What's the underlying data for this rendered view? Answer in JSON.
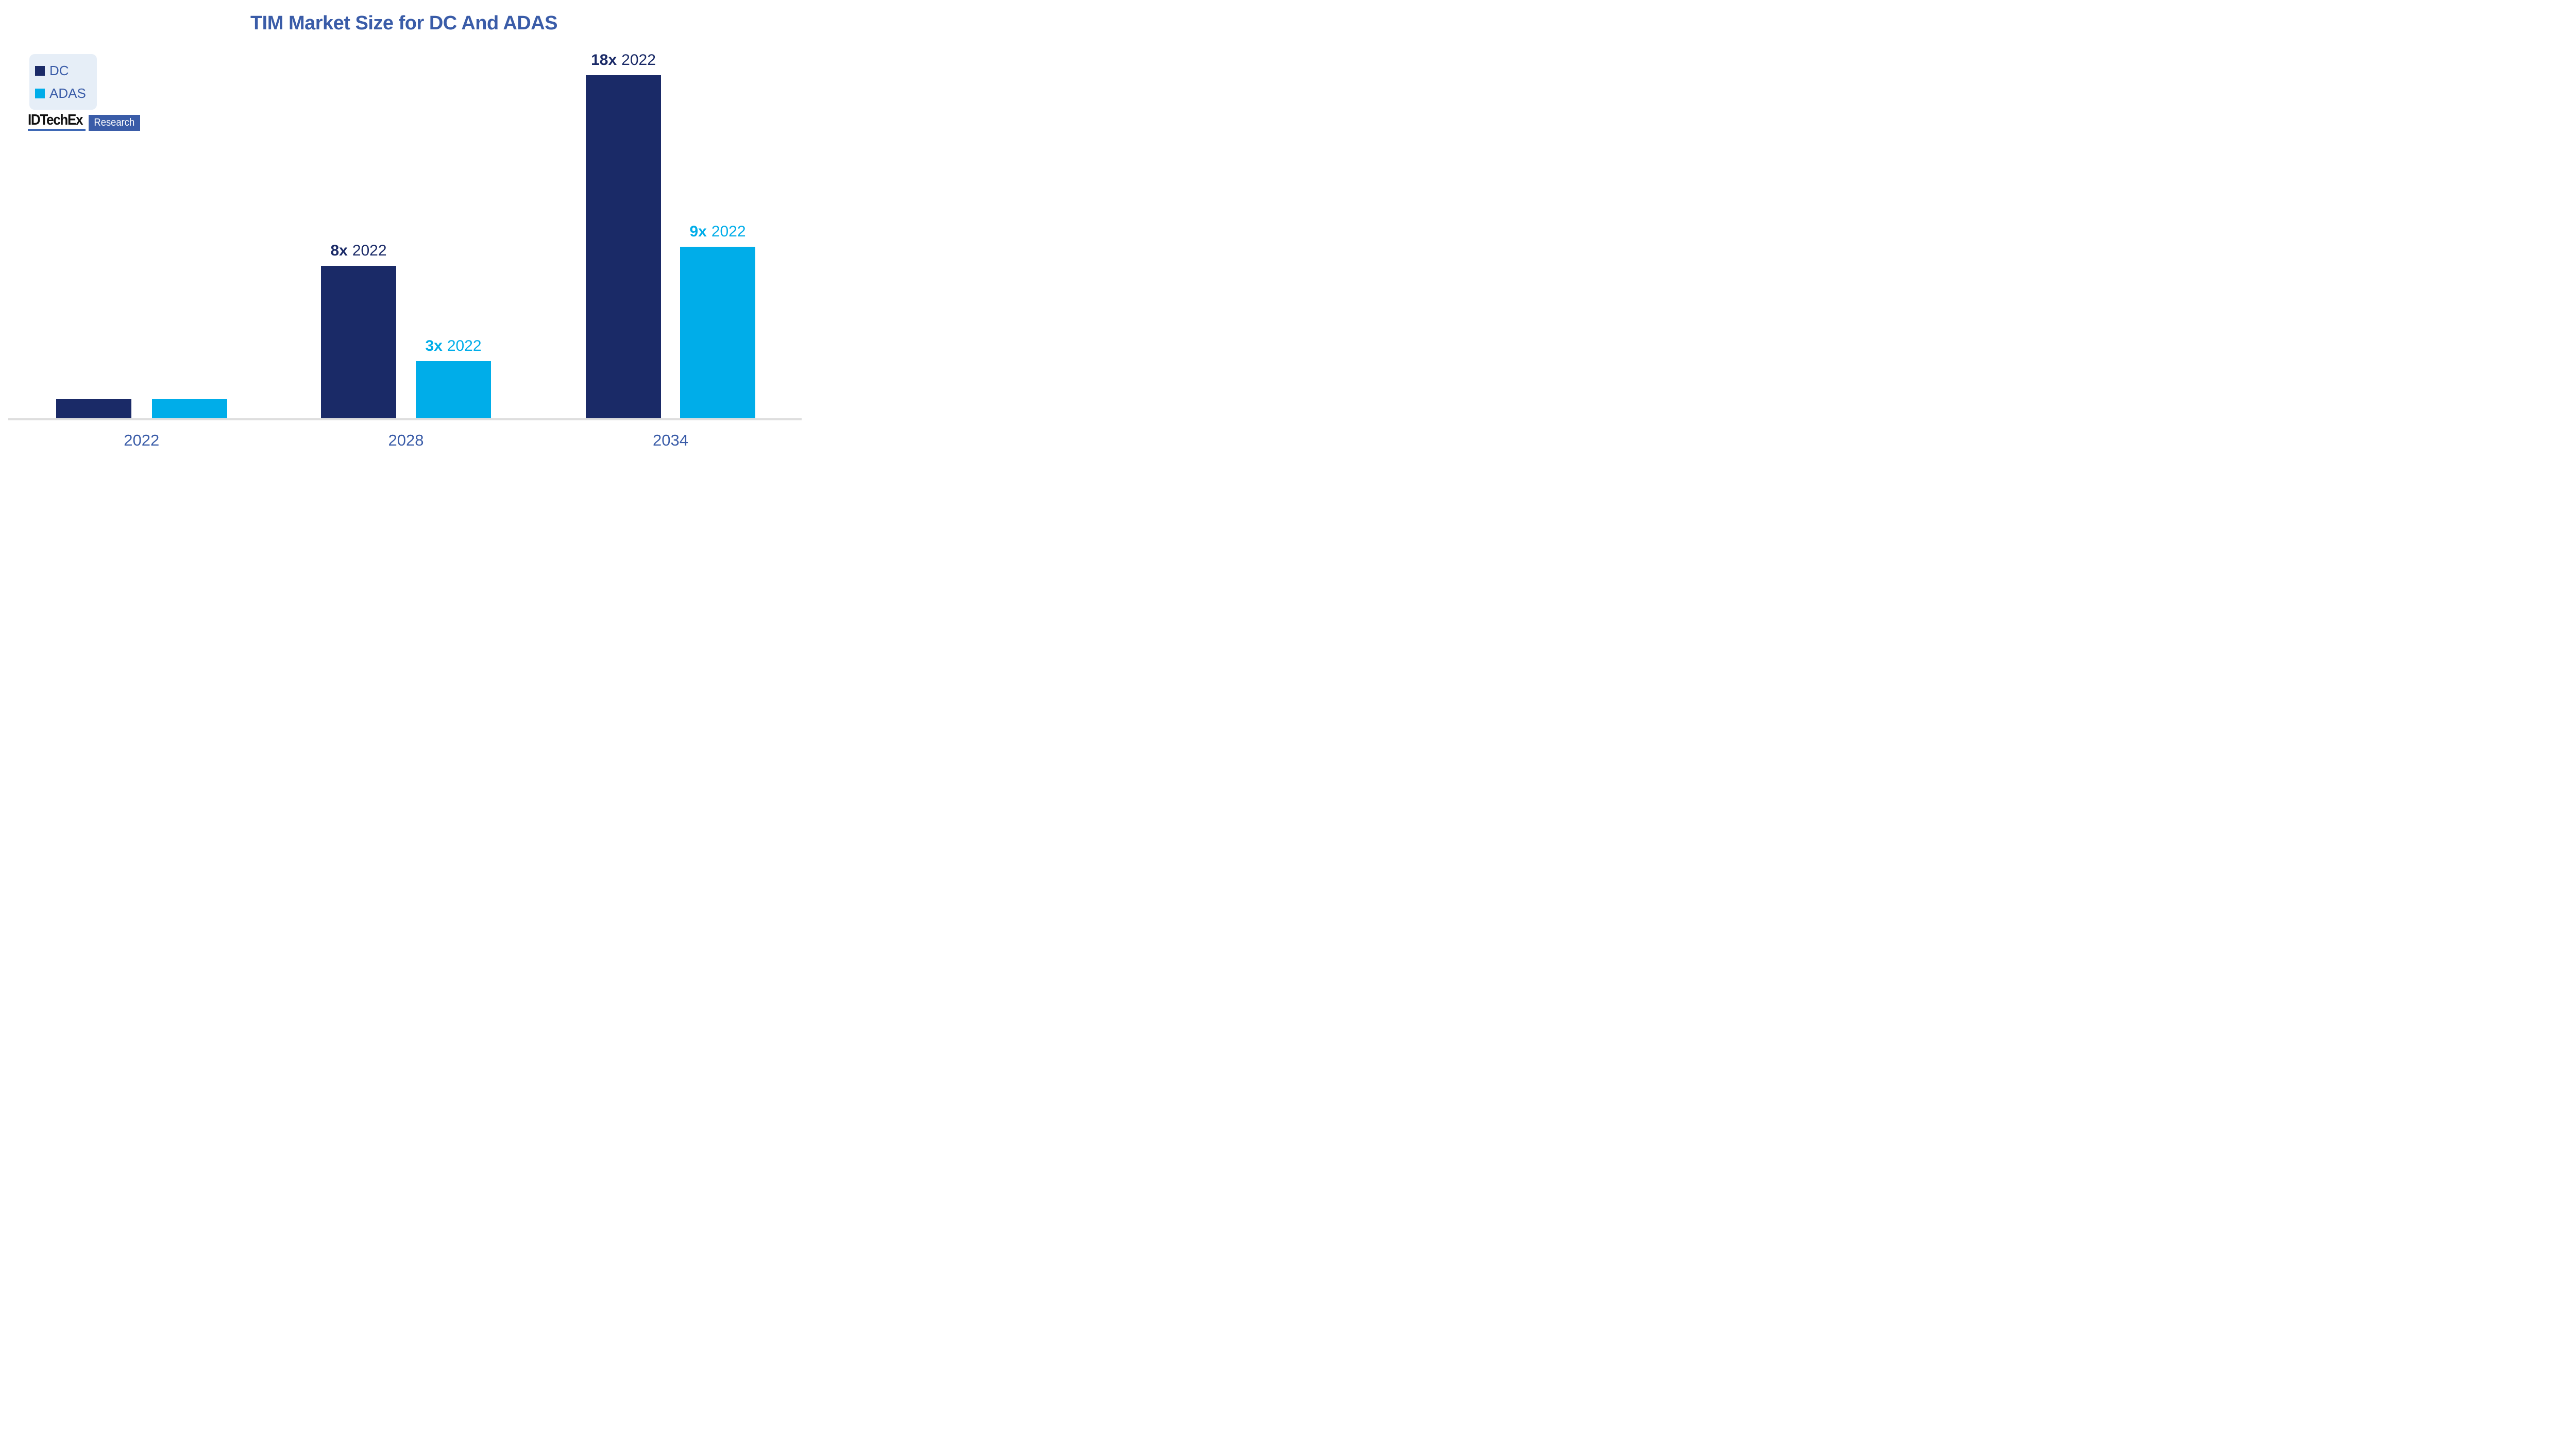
{
  "page": {
    "background": "#FFFFFF"
  },
  "title": {
    "text": "TIM Market Size for DC And ADAS"
  },
  "legend": {
    "background": "#E6EEF7",
    "items": [
      {
        "label": "DC",
        "color": "#1A2A67"
      },
      {
        "label": "ADAS",
        "color": "#00ADE9"
      }
    ]
  },
  "logo": {
    "brand": "IDTechEx",
    "suffix": "Research",
    "brand_color": "#101010",
    "underline_color": "#3E68B5",
    "box_color": "#3A5CA8",
    "suffix_text_color": "#FFFFFF"
  },
  "colors": {
    "dc": "#1A2A67",
    "adas": "#00ADE9",
    "text_blue": "#3A5CA8",
    "baseline": "#DEDEDE"
  },
  "chart_data": {
    "type": "bar",
    "title": "TIM Market Size for DC And ADAS",
    "categories": [
      "2022",
      "2028",
      "2034"
    ],
    "series": [
      {
        "name": "DC",
        "color": "#1A2A67",
        "values": [
          1,
          8,
          18
        ],
        "labels": [
          {
            "mult": "",
            "year": ""
          },
          {
            "mult": "8x",
            "year": "2022"
          },
          {
            "mult": "18x",
            "year": "2022"
          }
        ]
      },
      {
        "name": "ADAS",
        "color": "#00ADE9",
        "values": [
          1,
          3,
          9
        ],
        "labels": [
          {
            "mult": "",
            "year": ""
          },
          {
            "mult": "3x",
            "year": "2022"
          },
          {
            "mult": "9x",
            "year": "2022"
          }
        ]
      }
    ],
    "value_unit": "multiple of 2022 value (2022 bars = 1x)",
    "xlabel": "",
    "ylabel": "",
    "axis": {
      "gridlines": false,
      "baseline": true,
      "y_ticks": false
    },
    "legend_position": "top-left"
  }
}
